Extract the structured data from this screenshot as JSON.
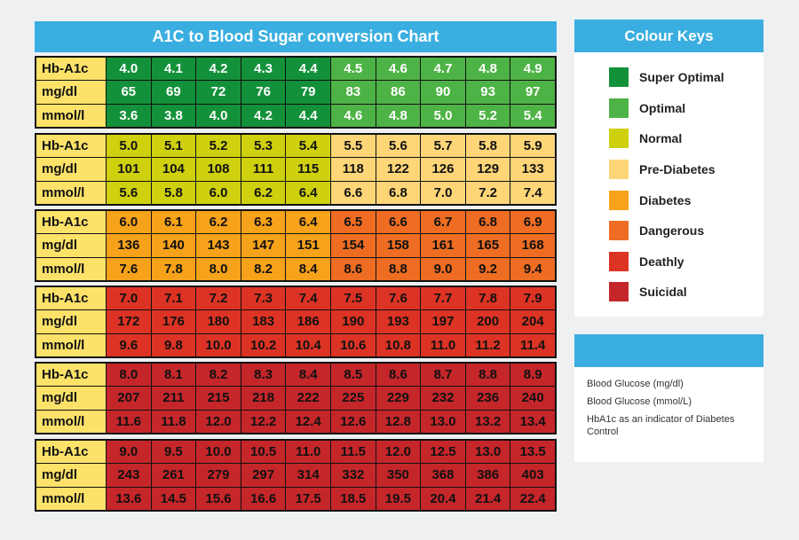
{
  "chart_data": {
    "type": "table",
    "title": "A1C to Blood Sugar conversion Chart",
    "row_labels": [
      "Hb-A1c",
      "mg/dl",
      "mmol/l"
    ],
    "blocks": [
      {
        "hba1c": [
          "4.0",
          "4.1",
          "4.2",
          "4.3",
          "4.4",
          "4.5",
          "4.6",
          "4.7",
          "4.8",
          "4.9"
        ],
        "mgdl": [
          "65",
          "69",
          "72",
          "76",
          "79",
          "83",
          "86",
          "90",
          "93",
          "97"
        ],
        "mmol": [
          "3.6",
          "3.8",
          "4.0",
          "4.2",
          "4.4",
          "4.6",
          "4.8",
          "5.0",
          "5.2",
          "5.4"
        ],
        "categories": [
          "super_optimal",
          "super_optimal",
          "super_optimal",
          "super_optimal",
          "super_optimal",
          "optimal",
          "optimal",
          "optimal",
          "optimal",
          "optimal"
        ]
      },
      {
        "hba1c": [
          "5.0",
          "5.1",
          "5.2",
          "5.3",
          "5.4",
          "5.5",
          "5.6",
          "5.7",
          "5.8",
          "5.9"
        ],
        "mgdl": [
          "101",
          "104",
          "108",
          "111",
          "115",
          "118",
          "122",
          "126",
          "129",
          "133"
        ],
        "mmol": [
          "5.6",
          "5.8",
          "6.0",
          "6.2",
          "6.4",
          "6.6",
          "6.8",
          "7.0",
          "7.2",
          "7.4"
        ],
        "categories": [
          "normal",
          "normal",
          "normal",
          "normal",
          "normal",
          "pre_diabetes",
          "pre_diabetes",
          "pre_diabetes",
          "pre_diabetes",
          "pre_diabetes"
        ]
      },
      {
        "hba1c": [
          "6.0",
          "6.1",
          "6.2",
          "6.3",
          "6.4",
          "6.5",
          "6.6",
          "6.7",
          "6.8",
          "6.9"
        ],
        "mgdl": [
          "136",
          "140",
          "143",
          "147",
          "151",
          "154",
          "158",
          "161",
          "165",
          "168"
        ],
        "mmol": [
          "7.6",
          "7.8",
          "8.0",
          "8.2",
          "8.4",
          "8.6",
          "8.8",
          "9.0",
          "9.2",
          "9.4"
        ],
        "categories": [
          "diabetes",
          "diabetes",
          "diabetes",
          "diabetes",
          "diabetes",
          "dangerous",
          "dangerous",
          "dangerous",
          "dangerous",
          "dangerous"
        ]
      },
      {
        "hba1c": [
          "7.0",
          "7.1",
          "7.2",
          "7.3",
          "7.4",
          "7.5",
          "7.6",
          "7.7",
          "7.8",
          "7.9"
        ],
        "mgdl": [
          "172",
          "176",
          "180",
          "183",
          "186",
          "190",
          "193",
          "197",
          "200",
          "204"
        ],
        "mmol": [
          "9.6",
          "9.8",
          "10.0",
          "10.2",
          "10.4",
          "10.6",
          "10.8",
          "11.0",
          "11.2",
          "11.4"
        ],
        "categories": [
          "deathly",
          "deathly",
          "deathly",
          "deathly",
          "deathly",
          "deathly",
          "deathly",
          "deathly",
          "deathly",
          "deathly"
        ]
      },
      {
        "hba1c": [
          "8.0",
          "8.1",
          "8.2",
          "8.3",
          "8.4",
          "8.5",
          "8.6",
          "8.7",
          "8.8",
          "8.9"
        ],
        "mgdl": [
          "207",
          "211",
          "215",
          "218",
          "222",
          "225",
          "229",
          "232",
          "236",
          "240"
        ],
        "mmol": [
          "11.6",
          "11.8",
          "12.0",
          "12.2",
          "12.4",
          "12.6",
          "12.8",
          "13.0",
          "13.2",
          "13.4"
        ],
        "categories": [
          "suicidal",
          "suicidal",
          "suicidal",
          "suicidal",
          "suicidal",
          "suicidal",
          "suicidal",
          "suicidal",
          "suicidal",
          "suicidal"
        ]
      },
      {
        "hba1c": [
          "9.0",
          "9.5",
          "10.0",
          "10.5",
          "11.0",
          "11.5",
          "12.0",
          "12.5",
          "13.0",
          "13.5"
        ],
        "mgdl": [
          "243",
          "261",
          "279",
          "297",
          "314",
          "332",
          "350",
          "368",
          "386",
          "403"
        ],
        "mmol": [
          "13.6",
          "14.5",
          "15.6",
          "16.6",
          "17.5",
          "18.5",
          "19.5",
          "20.4",
          "21.4",
          "22.4"
        ],
        "categories": [
          "suicidal",
          "suicidal",
          "suicidal",
          "suicidal",
          "suicidal",
          "suicidal",
          "suicidal",
          "suicidal",
          "suicidal",
          "suicidal"
        ]
      }
    ]
  },
  "colors": {
    "super_optimal": "#13913a",
    "optimal": "#4eb346",
    "normal": "#cfd00e",
    "pre_diabetes": "#fed678",
    "diabetes": "#f7a21b",
    "dangerous": "#ee6d22",
    "deathly": "#dc3324",
    "suicidal": "#c5262a",
    "label_bg": "#fde26a",
    "header_bg": "#3aaee0"
  },
  "legend": {
    "title": "Colour Keys",
    "items": [
      {
        "key": "super_optimal",
        "label": "Super Optimal"
      },
      {
        "key": "optimal",
        "label": "Optimal"
      },
      {
        "key": "normal",
        "label": "Normal"
      },
      {
        "key": "pre_diabetes",
        "label": "Pre-Diabetes"
      },
      {
        "key": "diabetes",
        "label": "Diabetes"
      },
      {
        "key": "dangerous",
        "label": "Dangerous"
      },
      {
        "key": "deathly",
        "label": "Deathly"
      },
      {
        "key": "suicidal",
        "label": "Suicidal"
      }
    ]
  },
  "info": {
    "lines": [
      "Blood Glucose (mg/dl)",
      "Blood Glucose (mmol/L)",
      "HbA1c as an indicator of Diabetes Control"
    ]
  }
}
